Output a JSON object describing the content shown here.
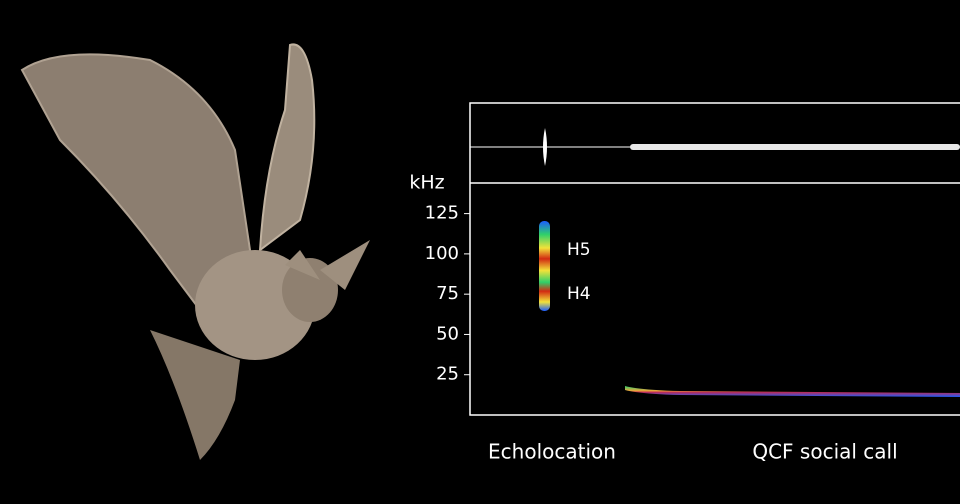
{
  "chart_data": {
    "type": "spectrogram",
    "ylabel": "kHz",
    "ylim": [
      0,
      144
    ],
    "yticks": [
      25,
      50,
      75,
      100,
      125
    ],
    "annotations": [
      "H5",
      "H4"
    ],
    "segments": [
      "Echolocation",
      "QCF social call"
    ]
  }
}
